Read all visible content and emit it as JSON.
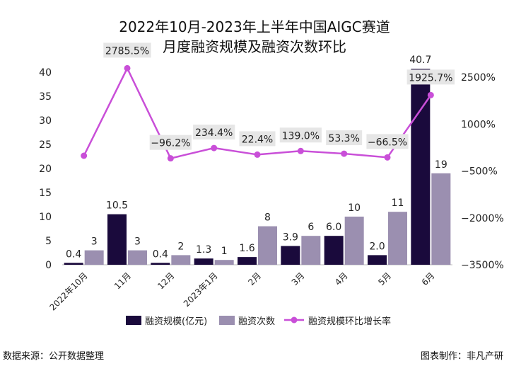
{
  "chart_data": {
    "type": "bar",
    "title_line1": "2022年10月-2023年上半年中国AIGC赛道",
    "title_line2": "月度融资规模及融资次数环比",
    "categories": [
      "2022年10月",
      "11月",
      "12月",
      "2023年1月",
      "2月",
      "3月",
      "4月",
      "5月",
      "6月"
    ],
    "series": [
      {
        "name": "融资规模(亿元)",
        "type": "bar",
        "axis": "left",
        "color": "#1a0a3c",
        "values": [
          0.4,
          10.5,
          0.4,
          1.3,
          1.6,
          3.9,
          6.0,
          2.0,
          40.7
        ],
        "labels": [
          "0.4",
          "10.5",
          "0.4",
          "1.3",
          "1.6",
          "3.9",
          "6.0",
          "2.0",
          "40.7"
        ]
      },
      {
        "name": "融资次数",
        "type": "bar",
        "axis": "left",
        "color": "#9b8fb0",
        "values": [
          3,
          3,
          2,
          1,
          8,
          6,
          10,
          11,
          19
        ],
        "labels": [
          "3",
          "3",
          "2",
          "1",
          "8",
          "6",
          "10",
          "11",
          "19"
        ]
      },
      {
        "name": "融资规模环比增长率",
        "type": "line",
        "axis": "right",
        "color": "#c94fd8",
        "values": [
          null,
          2785.5,
          -96.2,
          234.4,
          22.4,
          139.0,
          53.3,
          -66.5,
          1925.7
        ],
        "labels": [
          "",
          "2785.5%",
          "-96.2%",
          "234.4%",
          "22.4%",
          "139.0%",
          "53.3%",
          "-66.5%",
          "1925.7%"
        ]
      }
    ],
    "y_left": {
      "ticks": [
        "0",
        "5",
        "10",
        "15",
        "20",
        "25",
        "30",
        "35",
        "40"
      ],
      "ylim": [
        0,
        41
      ]
    },
    "y_right": {
      "ticks": [
        "-3500%",
        "-2000%",
        "-500%",
        "1000%",
        "2500%"
      ]
    },
    "grid": false,
    "legend_position": "bottom"
  },
  "footer": {
    "source": "数据来源：公开数据整理",
    "credit": "图表制作：非凡产研"
  }
}
